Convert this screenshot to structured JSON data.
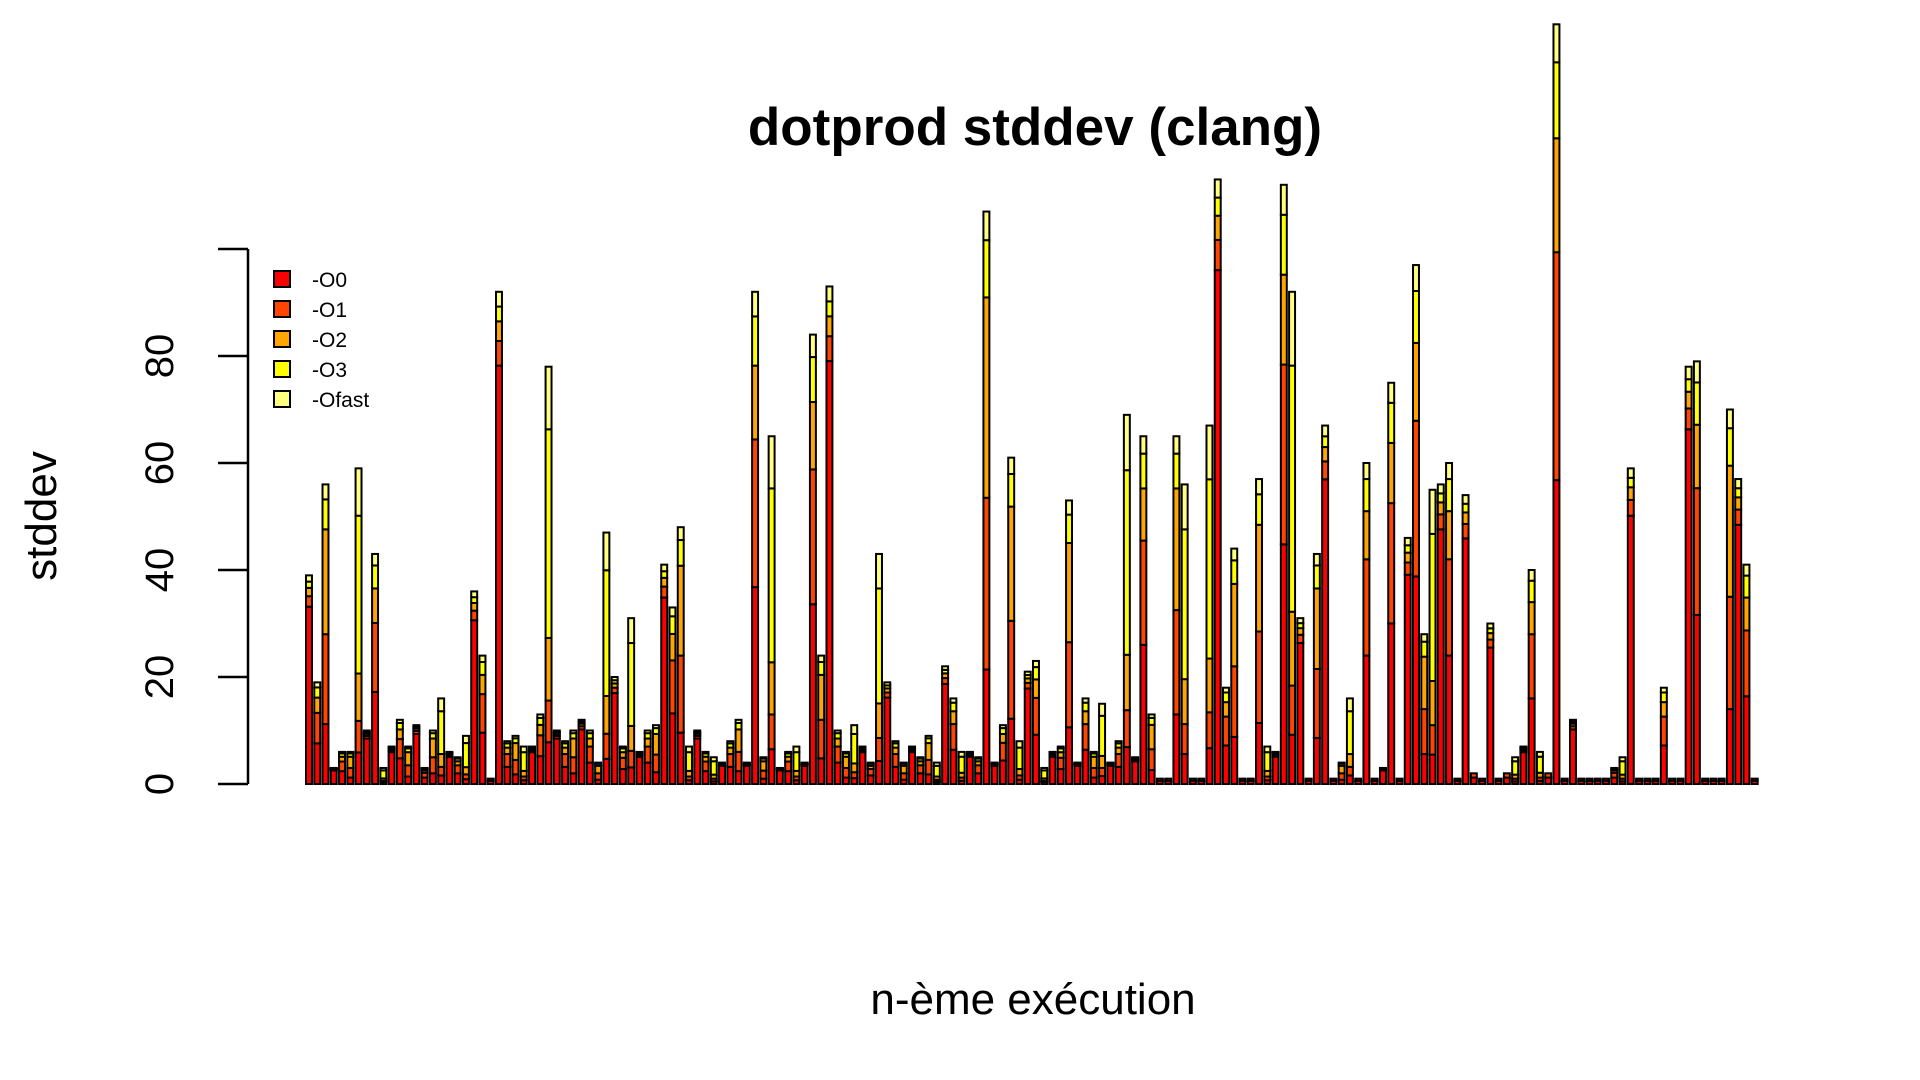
{
  "chart_data": {
    "type": "bar",
    "stacked": true,
    "title": "dotprod stddev (clang)",
    "xlabel": "n-ème exécution",
    "ylabel": "stddev",
    "ylim": [
      0,
      100
    ],
    "yticks": [
      0,
      20,
      40,
      60,
      80
    ],
    "grid": false,
    "legend_position": "top-left",
    "series": [
      {
        "name": "-O0",
        "color": "#ff0000"
      },
      {
        "name": "-O1",
        "color": "#ff4500"
      },
      {
        "name": "-O2",
        "color": "#ffa500"
      },
      {
        "name": "-O3",
        "color": "#ffff00"
      },
      {
        "name": "-Ofast",
        "color": "#ffff80"
      }
    ],
    "totals": [
      39,
      19,
      56,
      3,
      6,
      6,
      59,
      10,
      43,
      3,
      7,
      12,
      7,
      11,
      3,
      10,
      16,
      6,
      5,
      9,
      36,
      24,
      1,
      92,
      8,
      9,
      7,
      7,
      13,
      78,
      10,
      8,
      10,
      12,
      10,
      4,
      47,
      20,
      7,
      31,
      6,
      10,
      11,
      41,
      33,
      48,
      7,
      10,
      6,
      5,
      4,
      8,
      12,
      4,
      92,
      5,
      65,
      3,
      6,
      7,
      4,
      84,
      24,
      93,
      10,
      6,
      11,
      7,
      4,
      43,
      19,
      8,
      4,
      7,
      5,
      9,
      4,
      22,
      16,
      6,
      6,
      5,
      107,
      4,
      11,
      61,
      8,
      21,
      23,
      3,
      6,
      7,
      53,
      4,
      16,
      6,
      15,
      4,
      8,
      69,
      5,
      65,
      13,
      1,
      1,
      65,
      56,
      1,
      1,
      67,
      113,
      18,
      44,
      1,
      1,
      57,
      7,
      6,
      112,
      92,
      31,
      1,
      43,
      67,
      1,
      4,
      16,
      1,
      60,
      1,
      3,
      75,
      1,
      46,
      97,
      28,
      55,
      56,
      60,
      1,
      54,
      2,
      1,
      30,
      1,
      2,
      5,
      7,
      40,
      6,
      2,
      142,
      1,
      12,
      1,
      1,
      1,
      1,
      3,
      5,
      59,
      1,
      1,
      1,
      18,
      1,
      1,
      78,
      79,
      1,
      1,
      1,
      70,
      57,
      41,
      1
    ]
  }
}
